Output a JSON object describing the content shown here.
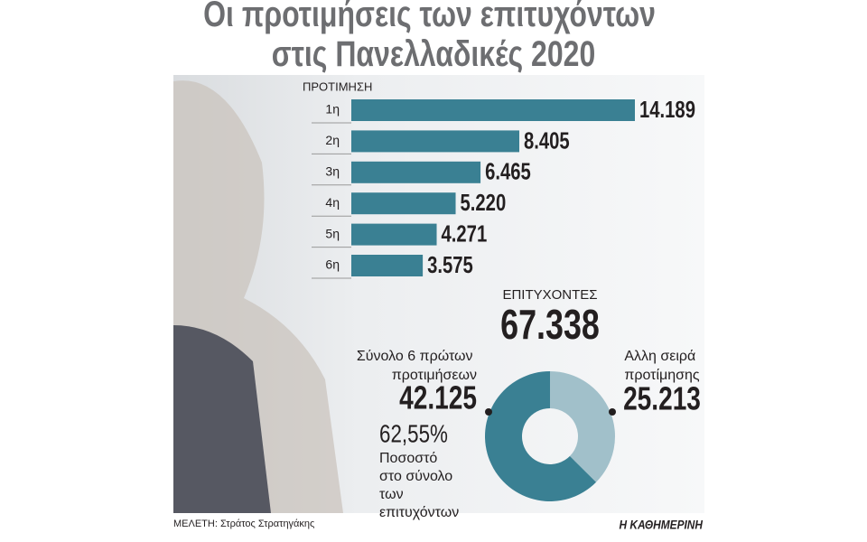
{
  "title": "Οι προτιμήσεις των επιτυχόντων στις Πανελλαδικές 2020",
  "footer": {
    "credit": "ΜΕΛΕΤΗ: Στράτος Στρατηγάκης",
    "source": "Η ΚΑΘΗΜΕΡΙΝΗ"
  },
  "chart_data": [
    {
      "type": "bar",
      "orientation": "horizontal",
      "y_label": "ΠΡΟΤΙΜΗΣΗ",
      "categories": [
        "1η",
        "2η",
        "3η",
        "4η",
        "5η",
        "6η"
      ],
      "values": [
        14189,
        8405,
        6465,
        5220,
        4271,
        3575
      ],
      "value_labels": [
        "14.189",
        "8.405",
        "6.465",
        "5.220",
        "4.271",
        "3.575"
      ],
      "color": "#3a8093"
    },
    {
      "type": "donut",
      "title": "ΕΠΙΤΥΧΟΝΤΕΣ",
      "total": {
        "value": 67338,
        "label": "67.338"
      },
      "categories": [
        "Σύνολο 6 πρώτων προτιμήσεων",
        "Αλλη σειρά προτίμησης"
      ],
      "values": [
        42125,
        25213
      ],
      "value_labels": [
        "42.125",
        "25.213"
      ],
      "colors": [
        "#3a8093",
        "#a1c0ca"
      ],
      "share": {
        "value": 62.55,
        "label": "62,55%"
      },
      "share_note": "Ποσοστό στο σύνολο των επιτυχόντων"
    }
  ]
}
